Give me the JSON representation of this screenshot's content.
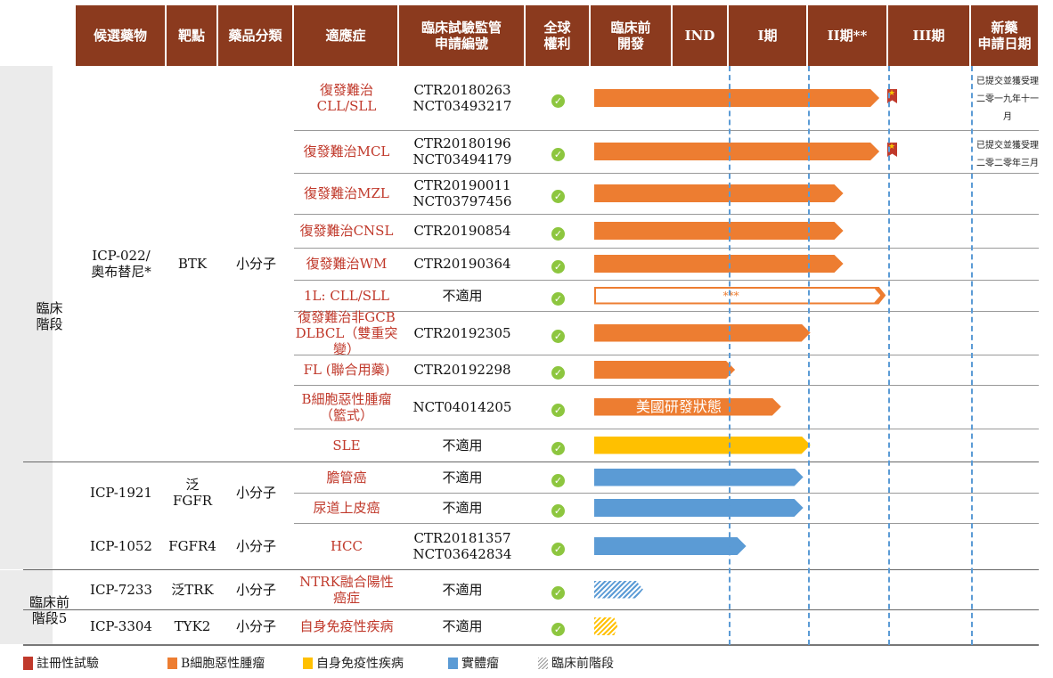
{
  "headers": [
    "候選藥物",
    "靶點",
    "藥品分類",
    "適應症",
    "臨床試驗監管\n申請編號",
    "全球\n權利",
    "臨床前\n開發",
    "IND",
    "I期",
    "II期**",
    "III期",
    "新藥\n申請日期"
  ],
  "stages": {
    "clinical": "臨床\n階段",
    "preclinical": "臨床前\n階段5"
  },
  "colors": {
    "b_cell": "#ed7d31",
    "autoimmune": "#ffc000",
    "solid": "#5b9bd5",
    "header": "#8b3a1e"
  },
  "drugs": [
    {
      "name": "ICP-022/\n奧布替尼*",
      "target": "BTK",
      "category": "小分子"
    },
    {
      "name": "ICP-1921",
      "target": "泛FGFR",
      "category": "小分子"
    },
    {
      "name": "ICP-1052",
      "target": "FGFR4",
      "category": "小分子"
    },
    {
      "name": "ICP-7233",
      "target": "泛TRK",
      "category": "小分子"
    },
    {
      "name": "ICP-3304",
      "target": "TYK2",
      "category": "小分子"
    }
  ],
  "rows": [
    {
      "indication": "復發難治CLL/SLL",
      "ctr": "CTR20180263\nNCT03493217",
      "type": "b_cell",
      "stage_progress": 3.89,
      "registrational": true,
      "nda": "已提交並獲受理\n二零一九年十一月"
    },
    {
      "indication": "復發難治MCL",
      "ctr": "CTR20180196\nNCT03494179",
      "type": "b_cell",
      "stage_progress": 3.89,
      "registrational": true,
      "nda": "已提交並獲受理\n二零二零年三月"
    },
    {
      "indication": "復發難治MZL",
      "ctr": "CTR20190011\nNCT03797456",
      "type": "b_cell",
      "stage_progress": 3.44
    },
    {
      "indication": "復發難治CNSL",
      "ctr": "CTR20190854",
      "type": "b_cell",
      "stage_progress": 3.44
    },
    {
      "indication": "復發難治WM",
      "ctr": "CTR20190364",
      "type": "b_cell",
      "stage_progress": 3.44
    },
    {
      "indication": "1L: CLL/SLL",
      "ctr": "不適用",
      "type": "b_cell",
      "stage_progress": 3.97,
      "outline": true,
      "bar_label": "***"
    },
    {
      "indication": "復發難治非GCB\nDLBCL（雙重突變）",
      "ctr": "CTR20192305",
      "type": "b_cell",
      "stage_progress": 3.03
    },
    {
      "indication": "FL (聯合用藥)",
      "ctr": "CTR20192298",
      "type": "b_cell",
      "stage_progress": 2.08
    },
    {
      "indication": "B細胞惡性腫瘤\n（籃式）",
      "ctr": "NCT04014205",
      "type": "b_cell",
      "stage_progress": 2.66,
      "bar_label": "美國研發狀態"
    },
    {
      "indication": "SLE",
      "ctr": "不適用",
      "type": "autoimmune",
      "stage_progress": 3.03
    },
    {
      "indication": "膽管癌",
      "ctr": "不適用",
      "type": "solid",
      "stage_progress": 2.94
    },
    {
      "indication": "尿道上皮癌",
      "ctr": "不適用",
      "type": "solid",
      "stage_progress": 2.94
    },
    {
      "indication": "HCC",
      "ctr": "CTR20181357\nNCT03642834",
      "type": "solid",
      "stage_progress": 2.22
    },
    {
      "indication": "NTRK融合陽性癌症",
      "ctr": "不適用",
      "type": "solid",
      "stage_progress": 0.64,
      "hatched": true
    },
    {
      "indication": "自身免疫性疾病",
      "ctr": "不適用",
      "type": "autoimmune",
      "stage_progress": 0.33,
      "hatched": true
    }
  ],
  "legend": [
    "註冊性試驗",
    "B細胞惡性腫瘤",
    "自身免疫性疾病",
    "實體瘤",
    "臨床前階段"
  ]
}
